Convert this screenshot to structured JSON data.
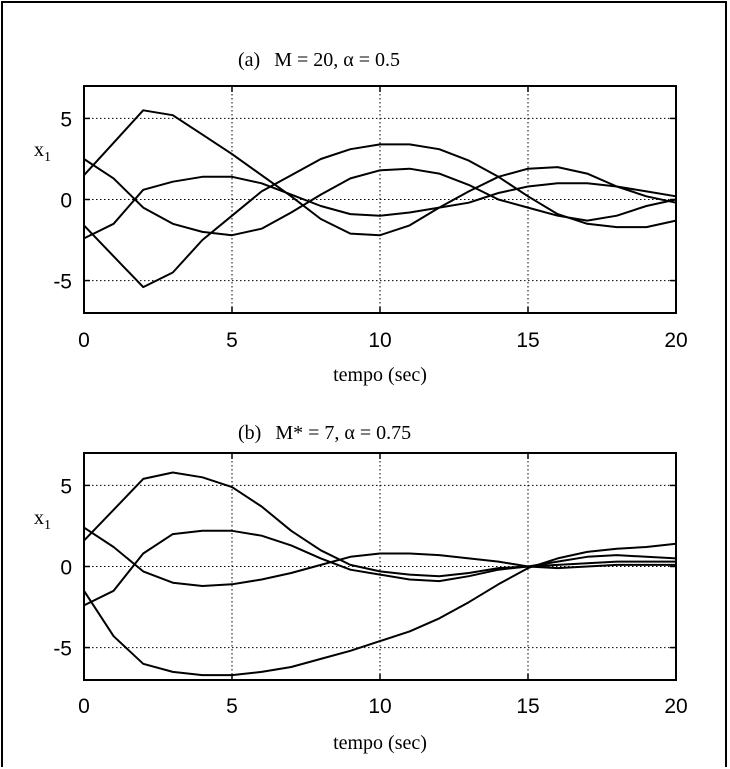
{
  "chart_data": [
    {
      "type": "line",
      "title_label": "(a)",
      "title_param": "M = 20, α = 0.5",
      "ylabel": "x",
      "ylabel_sub": "1",
      "xlabel": "tempo (sec)",
      "xlim": [
        0,
        20
      ],
      "ylim": [
        -7,
        7
      ],
      "xticks": [
        "0",
        "5",
        "10",
        "15",
        "20"
      ],
      "yticks": [
        "5",
        "0",
        "-5"
      ],
      "grid": true,
      "series": [
        {
          "x": [
            0,
            1,
            2,
            3,
            4,
            5,
            6,
            7,
            8,
            9,
            10,
            11,
            12,
            13,
            14,
            15,
            16,
            17,
            18,
            19,
            20
          ],
          "values": [
            1.5,
            3.5,
            5.5,
            5.2,
            4.0,
            2.8,
            1.5,
            0.2,
            -1.2,
            -2.1,
            -2.2,
            -1.6,
            -0.5,
            0.5,
            1.4,
            1.9,
            2.0,
            1.6,
            0.8,
            0.2,
            -0.2
          ]
        },
        {
          "x": [
            0,
            1,
            2,
            3,
            4,
            5,
            6,
            7,
            8,
            9,
            10,
            11,
            12,
            13,
            14,
            15,
            16,
            17,
            18,
            19,
            20
          ],
          "values": [
            -1.6,
            -3.5,
            -5.4,
            -4.5,
            -2.5,
            -1.0,
            0.5,
            1.5,
            2.5,
            3.1,
            3.4,
            3.4,
            3.1,
            2.4,
            1.4,
            0.2,
            -0.9,
            -1.5,
            -1.7,
            -1.7,
            -1.3
          ]
        },
        {
          "x": [
            0,
            1,
            2,
            3,
            4,
            5,
            6,
            7,
            8,
            9,
            10,
            11,
            12,
            13,
            14,
            15,
            16,
            17,
            18,
            19,
            20
          ],
          "values": [
            2.5,
            1.3,
            -0.5,
            -1.5,
            -2.0,
            -2.2,
            -1.8,
            -0.8,
            0.3,
            1.3,
            1.8,
            1.9,
            1.6,
            0.9,
            0.0,
            -0.5,
            -1.0,
            -1.3,
            -1.0,
            -0.4,
            0.0
          ]
        },
        {
          "x": [
            0,
            1,
            2,
            3,
            4,
            5,
            6,
            7,
            8,
            9,
            10,
            11,
            12,
            13,
            14,
            15,
            16,
            17,
            18,
            19,
            20
          ],
          "values": [
            -2.4,
            -1.5,
            0.6,
            1.1,
            1.4,
            1.4,
            1.0,
            0.3,
            -0.4,
            -0.9,
            -1.0,
            -0.8,
            -0.5,
            -0.2,
            0.4,
            0.8,
            1.0,
            1.0,
            0.8,
            0.5,
            0.2
          ]
        }
      ]
    },
    {
      "type": "line",
      "title_label": "(b)",
      "title_param": "M* = 7,  α = 0.75",
      "ylabel": "x",
      "ylabel_sub": "1",
      "xlabel": "tempo (sec)",
      "xlim": [
        0,
        20
      ],
      "ylim": [
        -7,
        7
      ],
      "xticks": [
        "0",
        "5",
        "10",
        "15",
        "20"
      ],
      "yticks": [
        "5",
        "0",
        "-5"
      ],
      "grid": true,
      "series": [
        {
          "x": [
            0,
            1,
            2,
            3,
            4,
            5,
            6,
            7,
            8,
            9,
            10,
            11,
            12,
            13,
            14,
            15,
            16,
            17,
            18,
            19,
            20
          ],
          "values": [
            1.6,
            3.5,
            5.4,
            5.8,
            5.5,
            4.9,
            3.7,
            2.2,
            1.0,
            0.1,
            -0.3,
            -0.5,
            -0.6,
            -0.4,
            -0.1,
            0.0,
            0.1,
            0.2,
            0.3,
            0.3,
            0.3
          ]
        },
        {
          "x": [
            0,
            1,
            2,
            3,
            4,
            5,
            6,
            7,
            8,
            9,
            10,
            11,
            12,
            13,
            14,
            15,
            16,
            17,
            18,
            19,
            20
          ],
          "values": [
            -1.5,
            -4.3,
            -6.0,
            -6.5,
            -6.7,
            -6.7,
            -6.5,
            -6.2,
            -5.7,
            -5.2,
            -4.6,
            -4.0,
            -3.2,
            -2.2,
            -1.1,
            -0.1,
            0.5,
            0.9,
            1.1,
            1.2,
            1.4
          ]
        },
        {
          "x": [
            0,
            1,
            2,
            3,
            4,
            5,
            6,
            7,
            8,
            9,
            10,
            11,
            12,
            13,
            14,
            15,
            16,
            17,
            18,
            19,
            20
          ],
          "values": [
            2.4,
            1.2,
            -0.3,
            -1.0,
            -1.2,
            -1.1,
            -0.8,
            -0.4,
            0.1,
            0.6,
            0.8,
            0.8,
            0.7,
            0.5,
            0.3,
            0.0,
            -0.1,
            0.0,
            0.1,
            0.1,
            0.1
          ]
        },
        {
          "x": [
            0,
            1,
            2,
            3,
            4,
            5,
            6,
            7,
            8,
            9,
            10,
            11,
            12,
            13,
            14,
            15,
            16,
            17,
            18,
            19,
            20
          ],
          "values": [
            -2.4,
            -1.5,
            0.8,
            2.0,
            2.2,
            2.2,
            1.9,
            1.3,
            0.5,
            -0.2,
            -0.5,
            -0.8,
            -0.9,
            -0.6,
            -0.2,
            0.0,
            0.3,
            0.6,
            0.7,
            0.6,
            0.5
          ]
        }
      ]
    }
  ]
}
